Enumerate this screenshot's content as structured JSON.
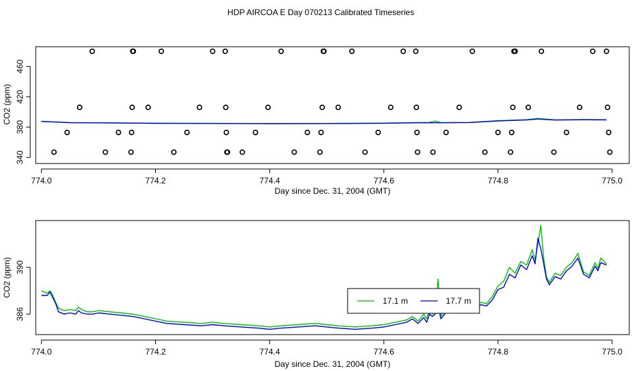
{
  "title": "HDP AIRCOA E  Day 070213  Calibrated Timeseries",
  "colors": {
    "green": "#00c000",
    "blue": "#0000e0",
    "cal_marker": "#000000"
  },
  "chart_data": [
    {
      "type": "scatter",
      "panel": "top",
      "xlabel": "Day since Dec. 31, 2004 (GMT)",
      "ylabel": "CO2 (ppm)",
      "xlim": [
        773.99,
        775.03
      ],
      "ylim": [
        332,
        486
      ],
      "x_ticks": [
        774.0,
        774.2,
        774.4,
        774.6,
        774.8,
        775.0
      ],
      "x_tick_labels": [
        "774.0",
        "774.2",
        "774.4",
        "774.6",
        "774.8",
        "775.0"
      ],
      "y_ticks": [
        340,
        380,
        420,
        460
      ],
      "y_tick_labels": [
        "340",
        "380",
        "420",
        "460"
      ],
      "grid": false,
      "legend": "none",
      "series": [
        {
          "marker": "open-circle",
          "x": [
            774.022,
            774.045,
            774.067,
            774.089,
            774.112,
            774.135,
            774.157,
            774.158,
            774.159,
            774.16,
            774.161,
            774.187,
            774.21,
            774.232,
            774.255,
            774.277,
            774.3,
            774.322,
            774.323,
            774.324,
            774.325,
            774.326,
            774.352,
            774.375,
            774.397,
            774.42,
            774.443,
            774.466,
            774.488,
            774.49,
            774.492,
            774.494,
            774.495,
            774.52,
            774.544,
            774.567,
            774.59,
            774.612,
            774.634,
            774.656,
            774.657,
            774.658,
            774.659,
            774.686,
            774.709,
            774.732,
            774.755,
            774.777,
            774.8,
            774.822,
            774.824,
            774.826,
            774.828,
            774.83,
            774.853,
            774.876,
            774.898,
            774.92,
            774.943,
            774.966,
            774.99,
            774.992,
            774.994,
            774.996
          ],
          "y": [
            347,
            373,
            406,
            480,
            347,
            373,
            347,
            373,
            406,
            480,
            480,
            406,
            480,
            347,
            373,
            406,
            480,
            480,
            406,
            373,
            347,
            347,
            347,
            373,
            406,
            480,
            347,
            373,
            347,
            373,
            406,
            480,
            480,
            406,
            480,
            347,
            373,
            406,
            480,
            480,
            406,
            373,
            347,
            347,
            373,
            406,
            480,
            347,
            373,
            347,
            373,
            406,
            480,
            480,
            406,
            480,
            347,
            373,
            406,
            480,
            480,
            406,
            373,
            347
          ]
        },
        {
          "name": "17.1 m",
          "color": "#00c000",
          "x": [
            774.0,
            774.05,
            774.1,
            774.2,
            774.3,
            774.4,
            774.5,
            774.6,
            774.65,
            774.68,
            774.69,
            774.7,
            774.75,
            774.8,
            774.85,
            774.87,
            774.9,
            774.95,
            774.99
          ],
          "y": [
            387.6,
            385.9,
            385.7,
            385.1,
            384.9,
            384.6,
            384.8,
            385.3,
            385.9,
            386.2,
            388.0,
            386.0,
            386.2,
            388.5,
            389.8,
            391.5,
            389.6,
            390.0,
            389.8
          ]
        },
        {
          "name": "17.7 m",
          "color": "#0000e0",
          "x": [
            774.0,
            774.05,
            774.1,
            774.2,
            774.3,
            774.4,
            774.5,
            774.6,
            774.65,
            774.7,
            774.75,
            774.8,
            774.85,
            774.87,
            774.9,
            774.95,
            774.99
          ],
          "y": [
            387.4,
            385.8,
            385.6,
            385.0,
            384.8,
            384.5,
            384.7,
            385.1,
            385.6,
            385.7,
            386.0,
            388.1,
            389.4,
            390.6,
            389.3,
            389.7,
            389.5
          ]
        }
      ]
    },
    {
      "type": "line",
      "panel": "bottom",
      "xlabel": "Day since Dec. 31, 2004 (GMT)",
      "ylabel": "CO2 (ppm)",
      "xlim": [
        773.99,
        775.03
      ],
      "ylim": [
        384.25,
        394.0
      ],
      "x_ticks": [
        774.0,
        774.2,
        774.4,
        774.6,
        774.8,
        775.0
      ],
      "x_tick_labels": [
        "774.0",
        "774.2",
        "774.4",
        "774.6",
        "774.8",
        "775.0"
      ],
      "y_ticks": [
        386,
        390
      ],
      "y_tick_labels": [
        "386",
        "390"
      ],
      "grid": false,
      "legend": "center-right",
      "series": [
        {
          "name": "17.1 m",
          "color": "#00c000",
          "x": [
            774.0,
            774.01,
            774.015,
            774.02,
            774.025,
            774.03,
            774.04,
            774.05,
            774.06,
            774.065,
            774.07,
            774.08,
            774.09,
            774.1,
            774.12,
            774.14,
            774.16,
            774.18,
            774.2,
            774.22,
            774.25,
            774.28,
            774.3,
            774.32,
            774.35,
            774.38,
            774.4,
            774.42,
            774.45,
            774.48,
            774.5,
            774.52,
            774.55,
            774.58,
            774.6,
            774.62,
            774.64,
            774.65,
            774.66,
            774.67,
            774.675,
            774.68,
            774.685,
            774.69,
            774.695,
            774.7,
            774.71,
            774.72,
            774.73,
            774.74,
            774.745,
            774.75,
            774.76,
            774.77,
            774.78,
            774.79,
            774.8,
            774.81,
            774.82,
            774.83,
            774.84,
            774.85,
            774.86,
            774.865,
            774.87,
            774.875,
            774.88,
            774.885,
            774.89,
            774.9,
            774.91,
            774.92,
            774.93,
            774.94,
            774.95,
            774.96,
            774.97,
            774.975,
            774.98,
            774.99
          ],
          "y": [
            388.0,
            387.8,
            388.0,
            387.6,
            387.0,
            386.5,
            386.3,
            386.4,
            386.3,
            386.6,
            386.4,
            386.2,
            386.2,
            386.3,
            386.2,
            386.1,
            386.0,
            385.8,
            385.6,
            385.4,
            385.3,
            385.2,
            385.3,
            385.2,
            385.1,
            385.0,
            384.9,
            385.0,
            385.1,
            385.2,
            385.1,
            385.0,
            384.9,
            385.0,
            385.1,
            385.3,
            385.5,
            385.8,
            385.4,
            386.0,
            385.6,
            386.3,
            386.0,
            386.2,
            389.0,
            385.8,
            386.5,
            386.8,
            386.9,
            387.6,
            386.6,
            387.9,
            386.7,
            387.0,
            386.9,
            387.5,
            388.4,
            388.8,
            390.0,
            389.5,
            390.5,
            390.2,
            391.5,
            390.6,
            392.0,
            393.6,
            390.8,
            389.2,
            388.7,
            389.5,
            389.3,
            390.0,
            390.4,
            391.2,
            389.6,
            389.3,
            390.4,
            389.9,
            390.8,
            390.3
          ]
        },
        {
          "name": "17.7 m",
          "color": "#0000e0",
          "x": [
            774.0,
            774.01,
            774.015,
            774.02,
            774.025,
            774.03,
            774.04,
            774.05,
            774.06,
            774.065,
            774.07,
            774.08,
            774.09,
            774.1,
            774.12,
            774.14,
            774.16,
            774.18,
            774.2,
            774.22,
            774.25,
            774.28,
            774.3,
            774.32,
            774.35,
            774.38,
            774.4,
            774.42,
            774.45,
            774.48,
            774.5,
            774.52,
            774.55,
            774.58,
            774.6,
            774.62,
            774.64,
            774.65,
            774.66,
            774.67,
            774.675,
            774.68,
            774.685,
            774.69,
            774.695,
            774.7,
            774.71,
            774.72,
            774.73,
            774.74,
            774.745,
            774.75,
            774.76,
            774.77,
            774.78,
            774.79,
            774.8,
            774.81,
            774.82,
            774.83,
            774.84,
            774.85,
            774.86,
            774.865,
            774.87,
            774.875,
            774.88,
            774.885,
            774.89,
            774.9,
            774.91,
            774.92,
            774.93,
            774.94,
            774.95,
            774.96,
            774.97,
            774.975,
            774.98,
            774.99
          ],
          "y": [
            387.6,
            387.6,
            387.9,
            387.4,
            386.9,
            386.2,
            386.0,
            386.1,
            386.0,
            386.3,
            386.1,
            386.0,
            386.0,
            386.1,
            386.0,
            385.9,
            385.8,
            385.6,
            385.4,
            385.2,
            385.1,
            385.0,
            385.1,
            385.0,
            384.9,
            384.8,
            384.7,
            384.8,
            384.9,
            385.0,
            384.9,
            384.8,
            384.7,
            384.8,
            384.9,
            385.1,
            385.3,
            385.6,
            385.2,
            385.7,
            385.3,
            386.0,
            385.8,
            386.0,
            386.7,
            385.6,
            386.2,
            386.5,
            386.6,
            387.2,
            386.4,
            387.4,
            386.5,
            386.8,
            386.7,
            387.2,
            388.1,
            388.3,
            389.4,
            389.1,
            390.2,
            389.8,
            391.0,
            390.3,
            392.5,
            391.6,
            390.3,
            389.0,
            388.5,
            389.2,
            389.0,
            389.7,
            390.1,
            390.8,
            389.4,
            389.1,
            390.1,
            389.7,
            390.4,
            390.2
          ]
        }
      ]
    }
  ]
}
